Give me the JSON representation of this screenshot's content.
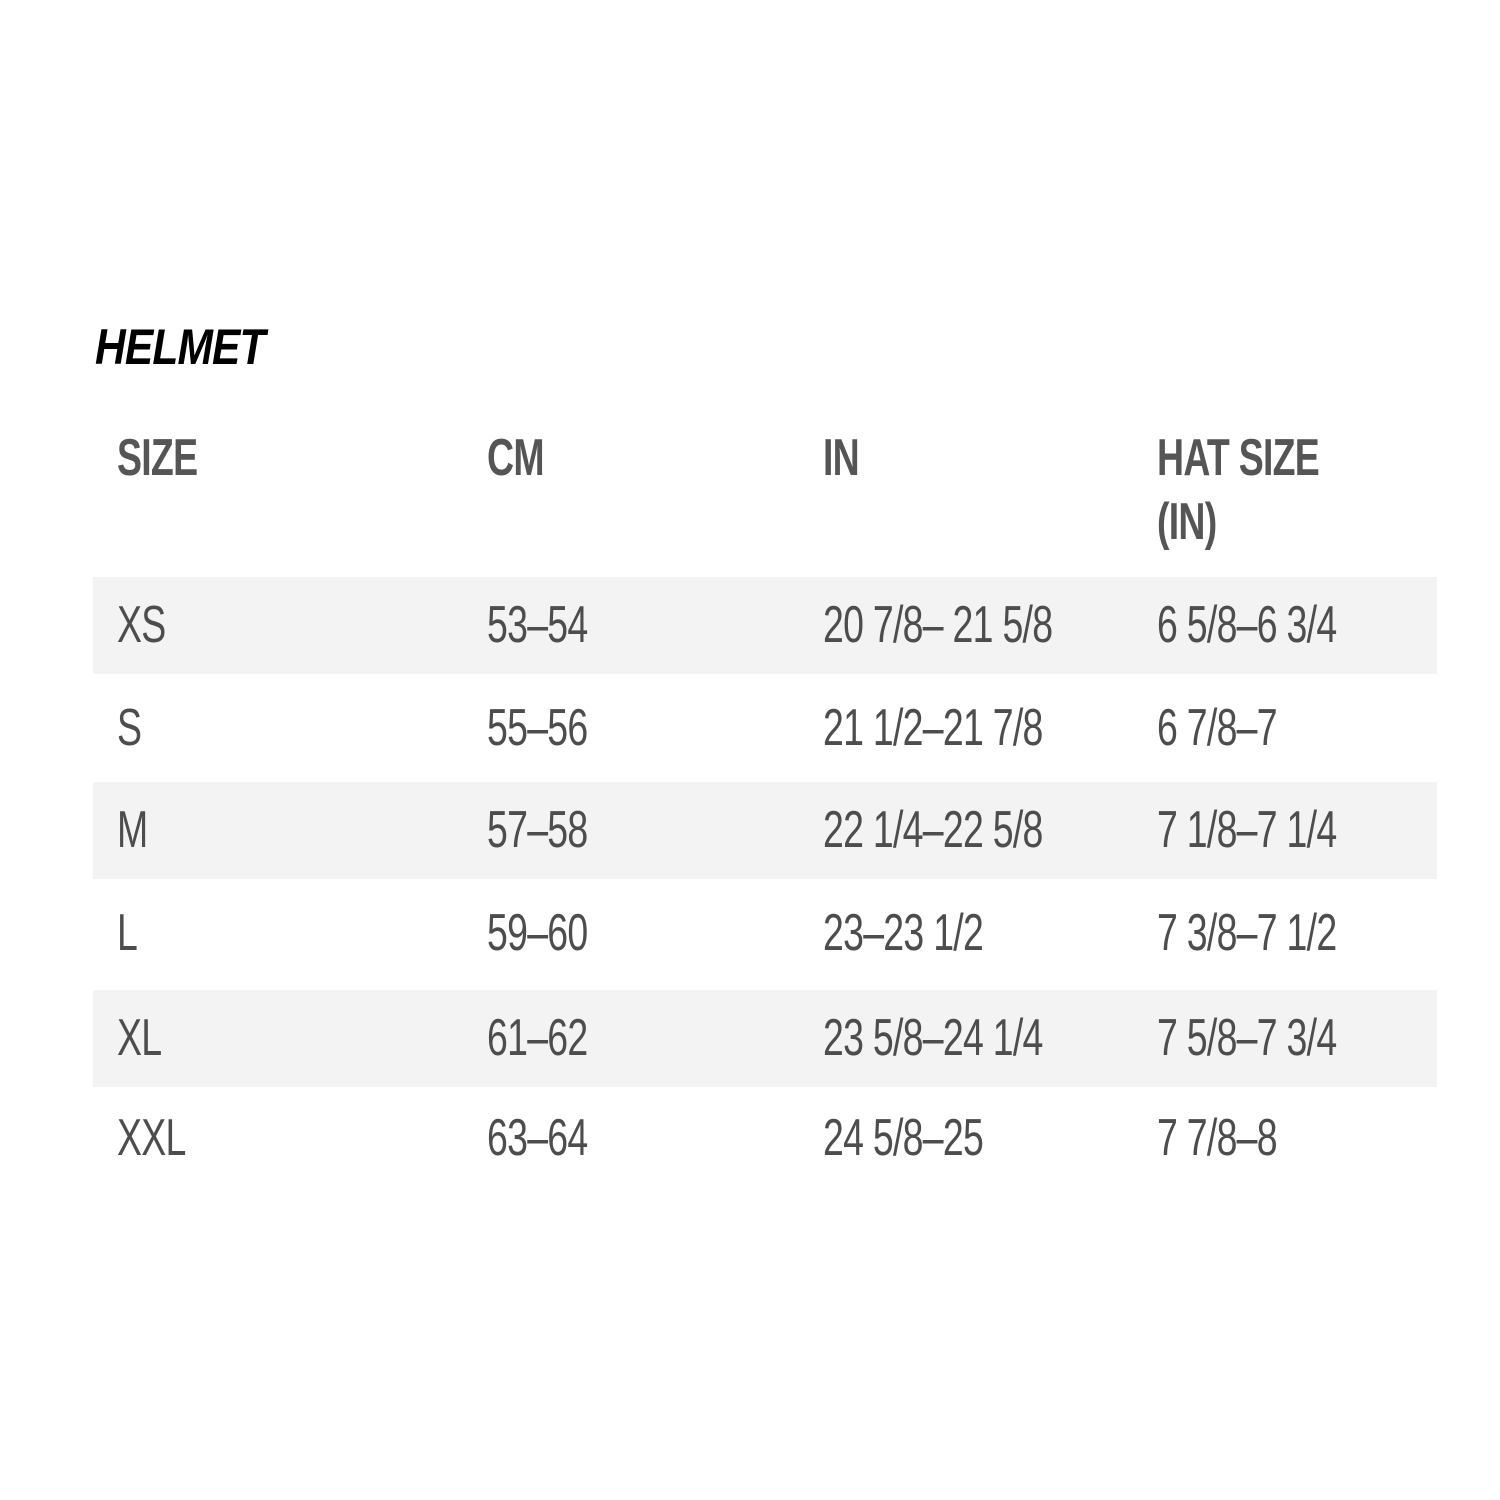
{
  "title": "HELMET",
  "table": {
    "headers": [
      "SIZE",
      "CM",
      "IN",
      "HAT SIZE\n(IN)"
    ],
    "header_hat_line1": "HAT SIZE",
    "header_hat_line2": "(IN)",
    "rows": [
      [
        "XS",
        "53–54",
        "20 7/8– 21 5/8",
        "6 5/8–6 3/4"
      ],
      [
        "S",
        "55–56",
        "21 1/2–21 7/8",
        "6 7/8–7"
      ],
      [
        "M",
        "57–58",
        "22 1/4–22 5/8",
        "7 1/8–7 1/4"
      ],
      [
        "L",
        "59–60",
        "23–23 1/2",
        "7 3/8–7 1/2"
      ],
      [
        "XL",
        "61–62",
        "23 5/8–24 1/4",
        "7 5/8–7 3/4"
      ],
      [
        "XXL",
        "63–64",
        "24 5/8–25",
        "7 7/8–8"
      ]
    ]
  },
  "colors": {
    "stripe": "#f3f3f3",
    "text": "#4d4d4d",
    "title": "#000000"
  }
}
